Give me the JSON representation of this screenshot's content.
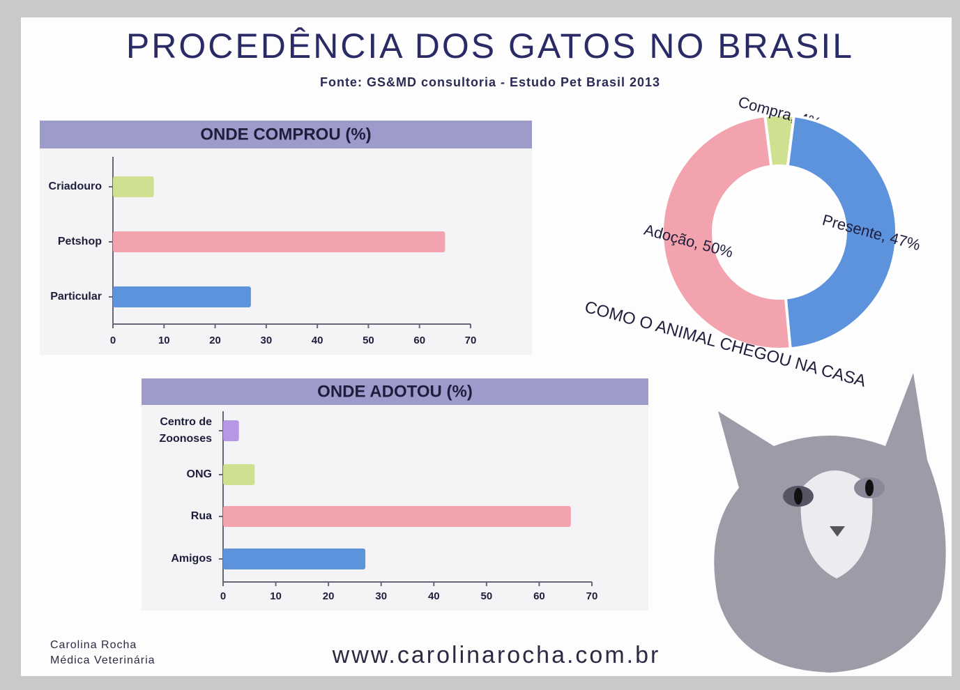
{
  "title": "PROCEDÊNCIA DOS GATOS NO BRASIL",
  "subtitle": "Fonte: GS&MD consultoria - Estudo Pet Brasil 2013",
  "author": [
    "Carolina Rocha",
    "Médica Veterinária"
  ],
  "website": "www.carolinarocha.com.br",
  "chart_data": [
    {
      "type": "hbar",
      "title": "ONDE COMPROU (%)",
      "categories": [
        "Criadouro",
        "Petshop",
        "Particular"
      ],
      "values": [
        8,
        65,
        27
      ],
      "colors": [
        "#cfe090",
        "#f2a3ad",
        "#5d92dc"
      ],
      "xlim": [
        0,
        70
      ],
      "xticks": [
        0,
        10,
        20,
        30,
        40,
        50,
        60,
        70
      ]
    },
    {
      "type": "hbar",
      "title": "ONDE ADOTOU (%)",
      "categories": [
        "Centro de Zoonoses",
        "ONG",
        "Rua",
        "Amigos"
      ],
      "values": [
        3,
        6,
        66,
        27
      ],
      "colors": [
        "#b597e6",
        "#cfe090",
        "#f2a3ad",
        "#5d92dc"
      ],
      "xlim": [
        0,
        70
      ],
      "xticks": [
        0,
        10,
        20,
        30,
        40,
        50,
        60,
        70
      ]
    },
    {
      "type": "donut",
      "title": "COMO O ANIMAL CHEGOU NA CASA",
      "values": [
        4,
        47,
        50
      ],
      "value_labels": [
        "Compra, 4%",
        "Presente, 47%",
        "Adoção, 50%"
      ],
      "colors": [
        "#cfe090",
        "#5d92dc",
        "#f2a3ad"
      ]
    }
  ]
}
